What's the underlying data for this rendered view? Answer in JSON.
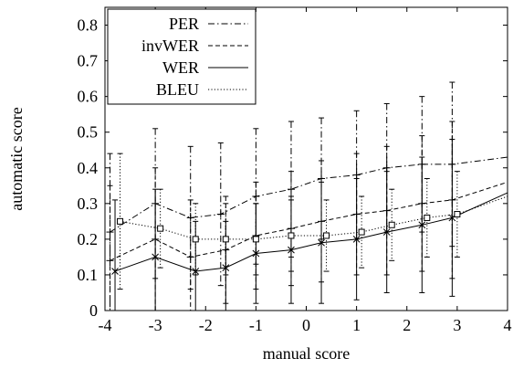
{
  "chart_data": {
    "type": "line",
    "xlabel": "manual score",
    "ylabel": "automatic score",
    "xlim": [
      -4,
      4
    ],
    "ylim": [
      0,
      0.85
    ],
    "x_ticks": [
      "-4",
      "-3",
      "-2",
      "-1",
      "0",
      "1",
      "2",
      "3",
      "4"
    ],
    "y_ticks": [
      "0",
      "0.1",
      "0.2",
      "0.3",
      "0.4",
      "0.5",
      "0.6",
      "0.7",
      "0.8"
    ],
    "grid": false,
    "legend_position": "top-left",
    "series": [
      {
        "name": "PER",
        "style": "dash-dot",
        "marker": "plus",
        "points": [
          {
            "x": -3.9,
            "y": 0.22,
            "err": 0.22
          },
          {
            "x": -3.0,
            "y": 0.3,
            "err": 0.21
          },
          {
            "x": -2.3,
            "y": 0.26,
            "err": 0.2
          },
          {
            "x": -1.7,
            "y": 0.27,
            "err": 0.2
          },
          {
            "x": -1.0,
            "y": 0.32,
            "err": 0.19
          },
          {
            "x": -0.3,
            "y": 0.34,
            "err": 0.19
          },
          {
            "x": 0.3,
            "y": 0.37,
            "err": 0.17
          },
          {
            "x": 1.0,
            "y": 0.38,
            "err": 0.18
          },
          {
            "x": 1.6,
            "y": 0.4,
            "err": 0.18
          },
          {
            "x": 2.3,
            "y": 0.41,
            "err": 0.19
          },
          {
            "x": 2.9,
            "y": 0.41,
            "err": 0.23
          },
          {
            "x": 4.0,
            "y": 0.43,
            "err": null
          }
        ]
      },
      {
        "name": "invWER",
        "style": "dashed",
        "marker": "plus",
        "points": [
          {
            "x": -3.9,
            "y": 0.14,
            "err": 0.21
          },
          {
            "x": -3.0,
            "y": 0.2,
            "err": 0.2
          },
          {
            "x": -2.3,
            "y": 0.15,
            "err": 0.16
          },
          {
            "x": -1.6,
            "y": 0.17,
            "err": 0.15
          },
          {
            "x": -1.0,
            "y": 0.21,
            "err": 0.15
          },
          {
            "x": -0.3,
            "y": 0.23,
            "err": 0.16
          },
          {
            "x": 0.3,
            "y": 0.25,
            "err": 0.17
          },
          {
            "x": 1.0,
            "y": 0.27,
            "err": 0.17
          },
          {
            "x": 1.6,
            "y": 0.28,
            "err": 0.18
          },
          {
            "x": 2.3,
            "y": 0.3,
            "err": 0.19
          },
          {
            "x": 2.9,
            "y": 0.31,
            "err": 0.22
          },
          {
            "x": 4.0,
            "y": 0.36,
            "err": null
          }
        ]
      },
      {
        "name": "WER",
        "style": "solid",
        "marker": "x",
        "points": [
          {
            "x": -3.8,
            "y": 0.11,
            "err": 0.2
          },
          {
            "x": -3.0,
            "y": 0.15,
            "err": 0.19
          },
          {
            "x": -2.2,
            "y": 0.11,
            "err": 0.14
          },
          {
            "x": -1.6,
            "y": 0.12,
            "err": 0.13
          },
          {
            "x": -1.0,
            "y": 0.16,
            "err": 0.14
          },
          {
            "x": -0.3,
            "y": 0.17,
            "err": 0.15
          },
          {
            "x": 0.3,
            "y": 0.19,
            "err": 0.17
          },
          {
            "x": 1.0,
            "y": 0.2,
            "err": 0.17
          },
          {
            "x": 1.6,
            "y": 0.22,
            "err": 0.17
          },
          {
            "x": 2.3,
            "y": 0.24,
            "err": 0.19
          },
          {
            "x": 2.9,
            "y": 0.26,
            "err": 0.22
          },
          {
            "x": 4.0,
            "y": 0.33,
            "err": null
          }
        ]
      },
      {
        "name": "BLEU",
        "style": "dotted",
        "marker": "square",
        "points": [
          {
            "x": -3.7,
            "y": 0.25,
            "err": 0.19
          },
          {
            "x": -2.9,
            "y": 0.23,
            "err": 0.11
          },
          {
            "x": -2.2,
            "y": 0.2,
            "err": 0.1
          },
          {
            "x": -1.6,
            "y": 0.2,
            "err": 0.1
          },
          {
            "x": -1.0,
            "y": 0.2,
            "err": 0.1
          },
          {
            "x": -0.3,
            "y": 0.21,
            "err": 0.1
          },
          {
            "x": 0.4,
            "y": 0.21,
            "err": 0.1
          },
          {
            "x": 1.1,
            "y": 0.22,
            "err": 0.1
          },
          {
            "x": 1.7,
            "y": 0.24,
            "err": 0.1
          },
          {
            "x": 2.4,
            "y": 0.26,
            "err": 0.11
          },
          {
            "x": 3.0,
            "y": 0.27,
            "err": 0.12
          },
          {
            "x": 4.0,
            "y": 0.32,
            "err": null
          }
        ]
      }
    ]
  }
}
